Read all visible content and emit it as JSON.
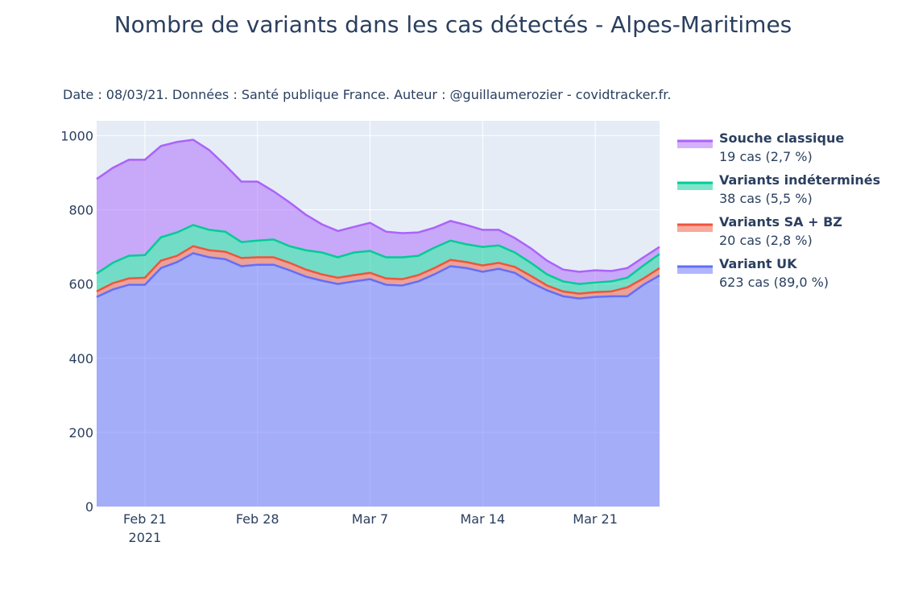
{
  "title": "Nombre de variants dans les cas détectés - Alpes-Maritimes",
  "subtitle": "Date : 08/03/21. Données : Santé publique France. Auteur : @guillaumerozier - covidtracker.fr.",
  "chart_data": {
    "type": "area",
    "stacked": true,
    "title": "Nombre de variants dans les cas détectés - Alpes-Maritimes",
    "x_start": "2021-02-18",
    "x_end": "2021-03-25",
    "x_ticks": [
      {
        "date": "2021-02-21",
        "label": "Feb 21",
        "sublabel": "2021"
      },
      {
        "date": "2021-02-28",
        "label": "Feb 28"
      },
      {
        "date": "2021-03-07",
        "label": "Mar 7"
      },
      {
        "date": "2021-03-14",
        "label": "Mar 14"
      },
      {
        "date": "2021-03-21",
        "label": "Mar 21"
      }
    ],
    "y_ticks": [
      0,
      200,
      400,
      600,
      800,
      1000
    ],
    "ylim": [
      0,
      1040
    ],
    "grid": true,
    "legend_position": "right",
    "series": [
      {
        "name": "Variant UK",
        "legend_sub": "623 cas (89,0 %)",
        "color": "#636efa",
        "values": [
          565,
          585,
          598,
          598,
          643,
          659,
          683,
          672,
          667,
          648,
          652,
          652,
          637,
          620,
          609,
          600,
          607,
          613,
          598,
          596,
          607,
          626,
          648,
          643,
          633,
          641,
          630,
          604,
          583,
          567,
          561,
          565,
          567,
          567,
          598,
          623
        ]
      },
      {
        "name": "Variants SA + BZ",
        "legend_sub": "20 cas (2,8 %)",
        "color": "#ef553b",
        "values": [
          15,
          17,
          17,
          19,
          20,
          17,
          19,
          19,
          20,
          22,
          20,
          20,
          20,
          19,
          17,
          17,
          17,
          17,
          17,
          17,
          17,
          17,
          17,
          16,
          17,
          16,
          16,
          18,
          13,
          13,
          13,
          13,
          13,
          24,
          17,
          20
        ]
      },
      {
        "name": "Variants indéterminés",
        "legend_sub": "38 cas (5,5 %)",
        "color": "#00cc96",
        "values": [
          48,
          55,
          61,
          61,
          63,
          63,
          57,
          55,
          54,
          43,
          45,
          48,
          45,
          52,
          59,
          55,
          61,
          59,
          57,
          59,
          52,
          55,
          52,
          48,
          50,
          47,
          39,
          35,
          30,
          27,
          26,
          26,
          27,
          26,
          35,
          38
        ]
      },
      {
        "name": "Souche classique",
        "legend_sub": "19 cas (2,7 %)",
        "color": "#ab63fa",
        "values": [
          255,
          256,
          259,
          257,
          246,
          244,
          230,
          215,
          179,
          163,
          159,
          130,
          118,
          96,
          76,
          71,
          69,
          76,
          69,
          65,
          63,
          54,
          53,
          52,
          46,
          42,
          39,
          39,
          37,
          32,
          33,
          33,
          28,
          26,
          22,
          19
        ]
      }
    ]
  }
}
